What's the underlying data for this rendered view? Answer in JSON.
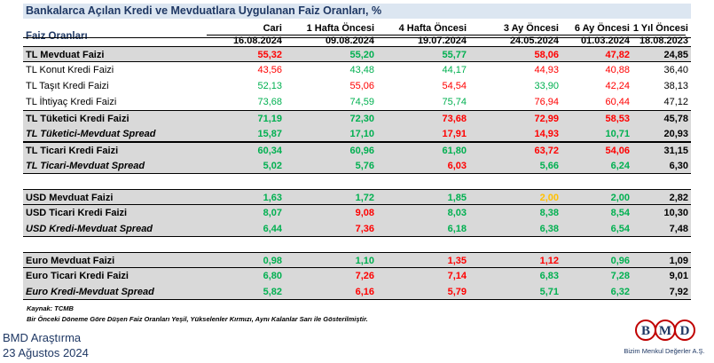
{
  "title": "Bankalarca Açılan Kredi ve Mevduatlara Uygulanan Faiz Oranları, %",
  "header": {
    "label": "Faiz Oranları",
    "columns": [
      {
        "name": "Cari",
        "date": "16.08.2024"
      },
      {
        "name": "1 Hafta Öncesi",
        "date": "09.08.2024"
      },
      {
        "name": "4 Hafta Öncesi",
        "date": "19.07.2024"
      },
      {
        "name": "3 Ay Öncesi",
        "date": "24.05.2024"
      },
      {
        "name": "6 Ay Öncesi",
        "date": "01.03.2024"
      },
      {
        "name": "1 Yıl Öncesi",
        "date": "18.08.2023"
      }
    ]
  },
  "rows": [
    {
      "label": "TL Mevduat Faizi",
      "values": [
        "55,32",
        "55,20",
        "55,77",
        "58,06",
        "47,82",
        "24,85"
      ],
      "colors": [
        "red",
        "green",
        "green",
        "red",
        "red",
        "black"
      ]
    },
    {
      "label": "TL Konut Kredi Faizi",
      "values": [
        "43,56",
        "43,48",
        "44,17",
        "44,93",
        "40,88",
        "36,40"
      ],
      "colors": [
        "red",
        "green",
        "green",
        "red",
        "red",
        "black"
      ]
    },
    {
      "label": "TL Taşıt Kredi Faizi",
      "values": [
        "52,13",
        "55,06",
        "54,54",
        "33,90",
        "42,24",
        "38,13"
      ],
      "colors": [
        "green",
        "red",
        "red",
        "green",
        "red",
        "black"
      ]
    },
    {
      "label": "TL İhtiyaç Kredi Faizi",
      "values": [
        "73,68",
        "74,59",
        "75,74",
        "76,94",
        "60,44",
        "47,12"
      ],
      "colors": [
        "green",
        "green",
        "green",
        "red",
        "red",
        "black"
      ]
    },
    {
      "label": "TL Tüketici Kredi Faizi",
      "values": [
        "71,19",
        "72,30",
        "73,68",
        "72,99",
        "58,53",
        "45,78"
      ],
      "colors": [
        "green",
        "green",
        "red",
        "red",
        "red",
        "black"
      ]
    },
    {
      "label": "TL Tüketici-Mevduat Spread",
      "values": [
        "15,87",
        "17,10",
        "17,91",
        "14,93",
        "10,71",
        "20,93"
      ],
      "colors": [
        "green",
        "green",
        "red",
        "red",
        "green",
        "black"
      ]
    },
    {
      "label": "TL Ticari Kredi Faizi",
      "values": [
        "60,34",
        "60,96",
        "61,80",
        "63,72",
        "54,06",
        "31,15"
      ],
      "colors": [
        "green",
        "green",
        "green",
        "red",
        "red",
        "black"
      ]
    },
    {
      "label": "TL Ticari-Mevduat Spread",
      "values": [
        "5,02",
        "5,76",
        "6,03",
        "5,66",
        "6,24",
        "6,30"
      ],
      "colors": [
        "green",
        "green",
        "red",
        "green",
        "green",
        "black"
      ]
    },
    {
      "label": "USD Mevduat Faizi",
      "values": [
        "1,63",
        "1,72",
        "1,85",
        "2,00",
        "2,00",
        "2,82"
      ],
      "colors": [
        "green",
        "green",
        "green",
        "yellow",
        "green",
        "black"
      ]
    },
    {
      "label": "USD Ticari Kredi Faizi",
      "values": [
        "8,07",
        "9,08",
        "8,03",
        "8,38",
        "8,54",
        "10,30"
      ],
      "colors": [
        "green",
        "red",
        "green",
        "green",
        "green",
        "black"
      ]
    },
    {
      "label": "USD Kredi-Mevduat Spread",
      "values": [
        "6,44",
        "7,36",
        "6,18",
        "6,38",
        "6,54",
        "7,48"
      ],
      "colors": [
        "green",
        "red",
        "green",
        "green",
        "green",
        "black"
      ]
    },
    {
      "label": "Euro Mevduat Faizi",
      "values": [
        "0,98",
        "1,10",
        "1,35",
        "1,12",
        "0,96",
        "1,09"
      ],
      "colors": [
        "green",
        "green",
        "red",
        "red",
        "green",
        "black"
      ]
    },
    {
      "label": "Euro Ticari Kredi Faizi",
      "values": [
        "6,80",
        "7,26",
        "7,14",
        "6,83",
        "7,28",
        "9,01"
      ],
      "colors": [
        "green",
        "red",
        "red",
        "green",
        "green",
        "black"
      ]
    },
    {
      "label": "Euro Kredi-Mevduat Spread",
      "values": [
        "5,82",
        "6,16",
        "5,79",
        "5,71",
        "6,32",
        "7,92"
      ],
      "colors": [
        "green",
        "red",
        "red",
        "green",
        "green",
        "black"
      ]
    }
  ],
  "notes": {
    "source": "Kaynak: TCMB",
    "legend": "Bir Önceki Döneme Göre Düşen Faiz Oranları Yeşil, Yükselenler Kırmızı, Aynı Kalanlar Sarı ile Gösterilmiştir."
  },
  "footer": {
    "brand": "BMD Araştırma",
    "date": "23 Ağustos 2024"
  },
  "logo": {
    "letters": [
      "B",
      "M",
      "D"
    ],
    "tagline": "Bizim Menkul Değerler A.Ş.",
    "ring_color": "#c00000",
    "letter_color": "#1f3864"
  }
}
